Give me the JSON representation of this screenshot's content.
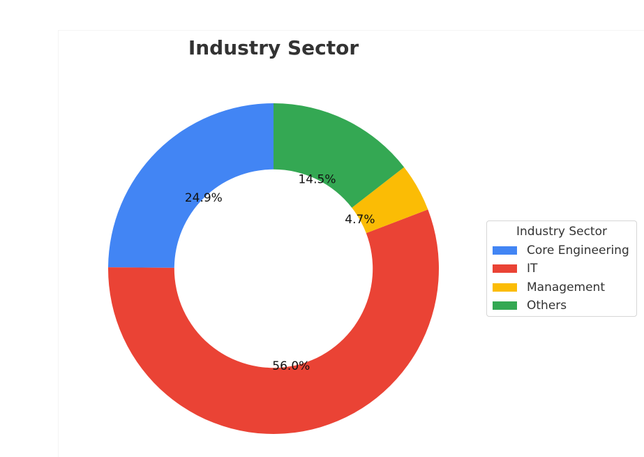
{
  "chart_data": {
    "type": "pie",
    "subtype": "donut",
    "title": "Industry Sector",
    "categories": [
      "Core Engineering",
      "IT",
      "Management",
      "Others"
    ],
    "values": [
      24.9,
      56.0,
      4.7,
      14.5
    ],
    "value_labels": [
      "24.9%",
      "56.0%",
      "4.7%",
      "14.5%"
    ],
    "colors": [
      "#4285F4",
      "#EA4335",
      "#FBBC05",
      "#34A853"
    ],
    "start_angle_deg": 90,
    "direction": "counterclockwise",
    "inner_radius_ratio": 0.6,
    "legend": {
      "title": "Industry Sector",
      "position": "right",
      "entries": [
        "Core Engineering",
        "IT",
        "Management",
        "Others"
      ]
    }
  },
  "title": "Industry Sector",
  "legend": {
    "title": "Industry Sector",
    "items": [
      {
        "label": "Core Engineering",
        "color": "#4285F4"
      },
      {
        "label": "IT",
        "color": "#EA4335"
      },
      {
        "label": "Management",
        "color": "#FBBC05"
      },
      {
        "label": "Others",
        "color": "#34A853"
      }
    ]
  }
}
